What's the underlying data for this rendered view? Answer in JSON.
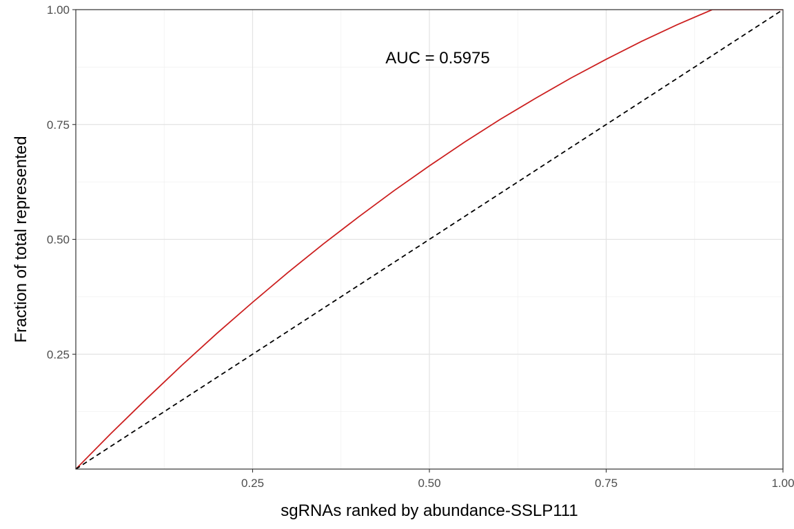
{
  "chart_data": {
    "type": "line",
    "title": "",
    "xlabel": "sgRNAs ranked by abundance-SSLP111",
    "ylabel": "Fraction of total represented",
    "xlim": [
      0,
      1
    ],
    "ylim": [
      0,
      1
    ],
    "x_ticks": [
      0.25,
      0.5,
      0.75,
      1.0
    ],
    "x_tick_labels": [
      "0.25",
      "0.50",
      "0.75",
      "1.00"
    ],
    "y_ticks": [
      0.25,
      0.5,
      0.75,
      1.0
    ],
    "y_tick_labels": [
      "0.25",
      "0.50",
      "0.75",
      "1.00"
    ],
    "minor_ticks": [
      0.125,
      0.375,
      0.625,
      0.875
    ],
    "grid": true,
    "annotation": {
      "text": "AUC = 0.5975",
      "x": 0.5,
      "y": 0.895
    },
    "series": [
      {
        "style": "solid",
        "color": "#cc1f1f",
        "x": [
          0,
          0.05,
          0.1,
          0.15,
          0.2,
          0.25,
          0.3,
          0.35,
          0.4,
          0.45,
          0.5,
          0.55,
          0.6,
          0.65,
          0.7,
          0.75,
          0.8,
          0.85,
          0.9,
          0.95,
          1.0
        ],
        "y": [
          0,
          0.078,
          0.153,
          0.226,
          0.296,
          0.363,
          0.428,
          0.49,
          0.549,
          0.606,
          0.66,
          0.712,
          0.761,
          0.807,
          0.851,
          0.892,
          0.931,
          0.967,
          1.0,
          1.03,
          1.058
        ]
      },
      {
        "style": "dashed",
        "color": "#000000",
        "x": [
          0,
          1
        ],
        "y": [
          0,
          1
        ]
      }
    ]
  }
}
